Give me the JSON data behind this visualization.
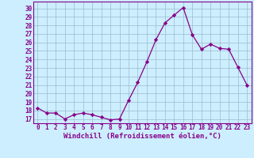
{
  "x": [
    0,
    1,
    2,
    3,
    4,
    5,
    6,
    7,
    8,
    9,
    10,
    11,
    12,
    13,
    14,
    15,
    16,
    17,
    18,
    19,
    20,
    21,
    22,
    23
  ],
  "y": [
    18.3,
    17.7,
    17.7,
    17.0,
    17.5,
    17.7,
    17.5,
    17.2,
    16.9,
    17.0,
    19.2,
    21.3,
    23.7,
    26.3,
    28.3,
    29.2,
    30.1,
    26.9,
    25.2,
    25.8,
    25.3,
    25.2,
    23.1,
    21.0
  ],
  "line_color": "#880088",
  "marker": "D",
  "marker_size": 2.2,
  "bg_color": "#cceeff",
  "grid_color": "#99bbcc",
  "xlabel": "Windchill (Refroidissement éolien,°C)",
  "xlabel_color": "#880088",
  "tick_color": "#880088",
  "ylim": [
    16.5,
    30.8
  ],
  "yticks": [
    17,
    18,
    19,
    20,
    21,
    22,
    23,
    24,
    25,
    26,
    27,
    28,
    29,
    30
  ],
  "xticks": [
    0,
    1,
    2,
    3,
    4,
    5,
    6,
    7,
    8,
    9,
    10,
    11,
    12,
    13,
    14,
    15,
    16,
    17,
    18,
    19,
    20,
    21,
    22,
    23
  ],
  "xlim": [
    -0.5,
    23.5
  ],
  "spine_color": "#880088",
  "tick_fontsize": 5.5,
  "xlabel_fontsize": 6.5
}
